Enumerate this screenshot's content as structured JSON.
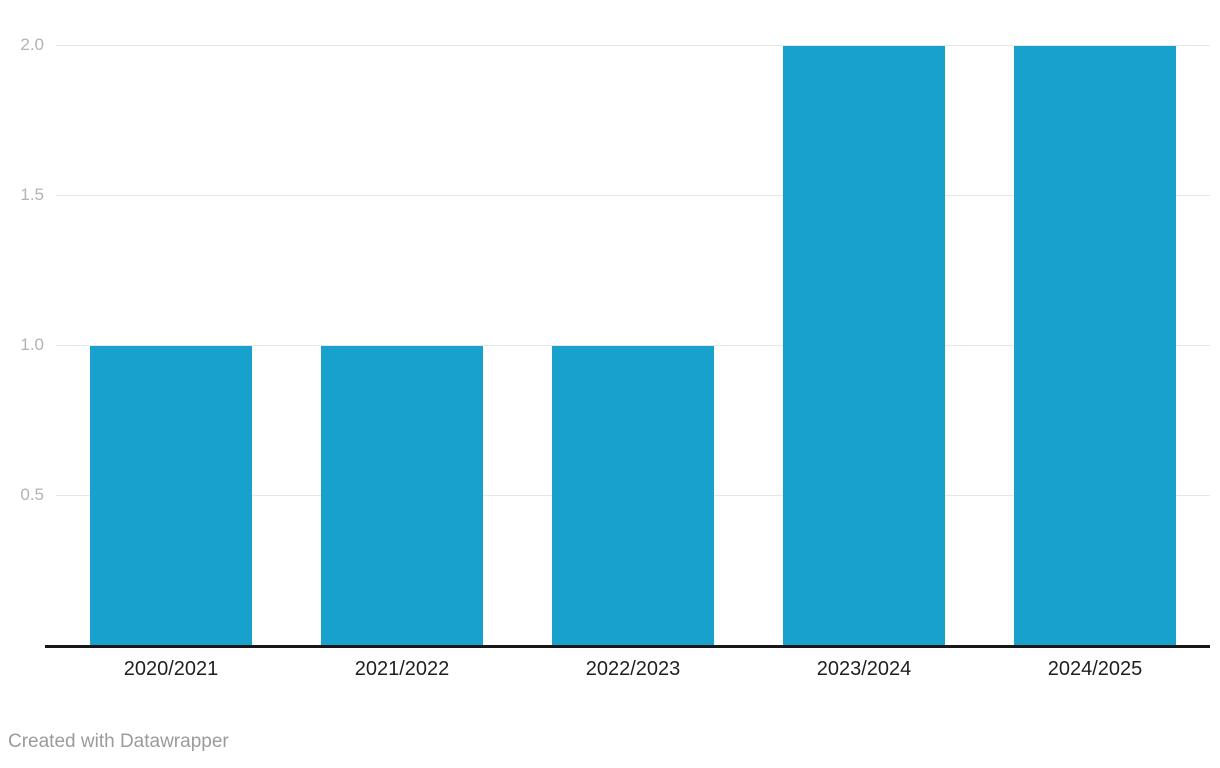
{
  "chart_data": {
    "type": "bar",
    "categories": [
      "2020/2021",
      "2021/2022",
      "2022/2023",
      "2023/2024",
      "2024/2025"
    ],
    "values": [
      1,
      1,
      1,
      2,
      2
    ],
    "title": "",
    "xlabel": "",
    "ylabel": "",
    "ylim": [
      0,
      2
    ],
    "yticks": [
      0.5,
      1.0,
      1.5,
      2.0
    ],
    "ytick_labels": [
      "0.5",
      "1.0",
      "1.5",
      "2.0"
    ],
    "grid": true,
    "legend": false,
    "bar_color": "#18a1cd",
    "gridline_color": "#e7e7e7",
    "axis_line_color": "#171717",
    "ytick_color": "#b3b3b3",
    "xtick_color": "#1f1f1f"
  },
  "footer": {
    "credit": "Created with Datawrapper"
  }
}
